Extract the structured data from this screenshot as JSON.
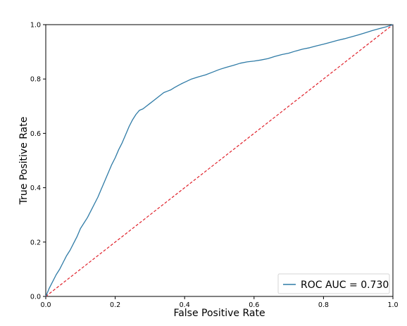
{
  "chart_data": {
    "type": "line",
    "title": "",
    "xlabel": "False Positive Rate",
    "ylabel": "True Positive Rate",
    "xlim": [
      0.0,
      1.0
    ],
    "ylim": [
      0.0,
      1.0
    ],
    "xticks": [
      "0.0",
      "0.2",
      "0.4",
      "0.6",
      "0.8",
      "1.0"
    ],
    "yticks": [
      "0.0",
      "0.2",
      "0.4",
      "0.6",
      "0.8",
      "1.0"
    ],
    "grid": false,
    "legend_position": "lower-right",
    "series": [
      {
        "name": "ROC AUC = 0.730",
        "color": "#2f7ba6",
        "style": "solid",
        "x": [
          0.0,
          0.005,
          0.01,
          0.02,
          0.03,
          0.04,
          0.05,
          0.06,
          0.07,
          0.08,
          0.09,
          0.1,
          0.11,
          0.12,
          0.13,
          0.14,
          0.15,
          0.16,
          0.17,
          0.18,
          0.19,
          0.2,
          0.21,
          0.22,
          0.23,
          0.24,
          0.25,
          0.26,
          0.27,
          0.28,
          0.29,
          0.3,
          0.31,
          0.32,
          0.33,
          0.34,
          0.35,
          0.36,
          0.37,
          0.38,
          0.39,
          0.4,
          0.42,
          0.44,
          0.46,
          0.48,
          0.5,
          0.52,
          0.54,
          0.56,
          0.58,
          0.6,
          0.62,
          0.64,
          0.66,
          0.68,
          0.7,
          0.72,
          0.74,
          0.76,
          0.78,
          0.8,
          0.82,
          0.84,
          0.86,
          0.88,
          0.9,
          0.92,
          0.94,
          0.96,
          0.98,
          1.0
        ],
        "y": [
          0.0,
          0.015,
          0.03,
          0.055,
          0.08,
          0.1,
          0.125,
          0.15,
          0.17,
          0.195,
          0.22,
          0.25,
          0.27,
          0.29,
          0.315,
          0.34,
          0.365,
          0.395,
          0.425,
          0.455,
          0.485,
          0.51,
          0.54,
          0.565,
          0.595,
          0.625,
          0.65,
          0.67,
          0.685,
          0.69,
          0.7,
          0.71,
          0.72,
          0.73,
          0.74,
          0.75,
          0.755,
          0.76,
          0.768,
          0.775,
          0.782,
          0.788,
          0.8,
          0.808,
          0.815,
          0.825,
          0.835,
          0.843,
          0.85,
          0.858,
          0.863,
          0.866,
          0.87,
          0.875,
          0.883,
          0.89,
          0.895,
          0.903,
          0.91,
          0.915,
          0.922,
          0.928,
          0.935,
          0.942,
          0.948,
          0.955,
          0.962,
          0.97,
          0.978,
          0.985,
          0.992,
          1.0
        ]
      },
      {
        "name": "",
        "color": "#e0202a",
        "style": "dashed",
        "x": [
          0.0,
          1.0
        ],
        "y": [
          0.0,
          1.0
        ]
      }
    ]
  }
}
